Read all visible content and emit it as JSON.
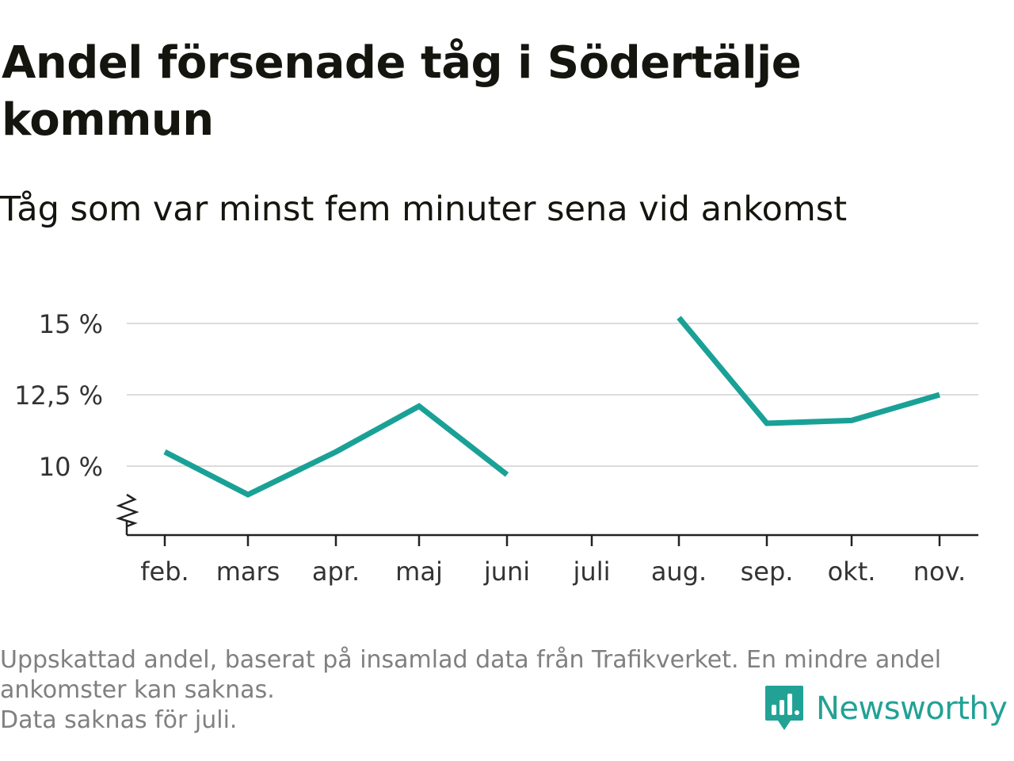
{
  "title": "Andel försenade tåg i Södertälje kommun",
  "subtitle": "Tåg som var minst fem minuter sena vid ankomst",
  "footnote": {
    "line1": "Uppskattad andel, baserat på insamlad data från Trafikverket. En mindre andel",
    "line2": "ankomster kan saknas.",
    "line3": "Data saknas för juli."
  },
  "brand": {
    "name": "Newsworthy",
    "icon": "newsworthy-logo-icon",
    "color": "#22a295"
  },
  "colors": {
    "line": "#1aa197",
    "grid": "#dcdcdc",
    "axis": "#222222",
    "tick_label": "#333333"
  },
  "chart_data": {
    "type": "line",
    "title": "Andel försenade tåg i Södertälje kommun",
    "subtitle": "Tåg som var minst fem minuter sena vid ankomst",
    "categories": [
      "feb.",
      "mars",
      "apr.",
      "maj",
      "juni",
      "juli",
      "aug.",
      "sep.",
      "okt.",
      "nov."
    ],
    "series": [
      {
        "values": [
          10.5,
          9.0,
          10.5,
          12.1,
          9.7,
          null,
          15.2,
          11.5,
          11.6,
          12.5
        ]
      }
    ],
    "yticks": [
      10,
      12.5,
      15
    ],
    "ytick_labels": [
      "10 %",
      "12,5 %",
      "15 %"
    ],
    "ylim": [
      7.6,
      15.5
    ],
    "y_axis_break": true,
    "grid": true,
    "legend": "none"
  }
}
